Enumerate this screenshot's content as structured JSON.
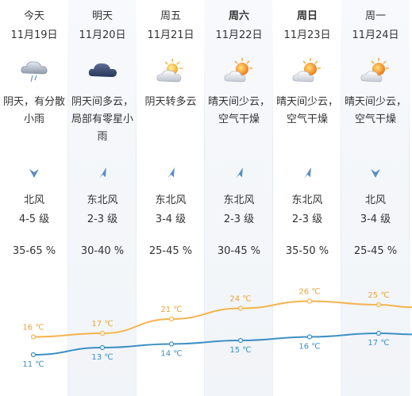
{
  "days": [
    {
      "day": "今天",
      "date": "11月19日",
      "icon": "rain-cloud-icon",
      "desc": "阴天，有分散小雨",
      "wind_dir": "北风",
      "wind_level": "4-5 级",
      "wind_arrow": "down",
      "humidity": "35-65 %",
      "high": "16 ℃",
      "low": "11 ℃",
      "bold": false,
      "shaded": false
    },
    {
      "day": "明天",
      "date": "11月20日",
      "icon": "dark-cloud-icon",
      "desc": "阴天间多云，局部有零星小雨",
      "wind_dir": "东北风",
      "wind_level": "2-3 级",
      "wind_arrow": "down-left",
      "humidity": "30-40 %",
      "high": "17 ℃",
      "low": "13 ℃",
      "bold": false,
      "shaded": true
    },
    {
      "day": "周五",
      "date": "11月21日",
      "icon": "sun-cloud-icon",
      "desc": "阴天转多云",
      "wind_dir": "东北风",
      "wind_level": "3-4 级",
      "wind_arrow": "down-left",
      "humidity": "25-45 %",
      "high": "21 ℃",
      "low": "14 ℃",
      "bold": false,
      "shaded": false
    },
    {
      "day": "周六",
      "date": "11月22日",
      "icon": "sunny-cloud-icon",
      "desc": "晴天间少云，空气干燥",
      "wind_dir": "东北风",
      "wind_level": "2-3 级",
      "wind_arrow": "down-left",
      "humidity": "30-45 %",
      "high": "24 ℃",
      "low": "15 ℃",
      "bold": true,
      "shaded": true
    },
    {
      "day": "周日",
      "date": "11月23日",
      "icon": "sunny-cloud-icon",
      "desc": "晴天间少云，空气干燥",
      "wind_dir": "东北风",
      "wind_level": "2-3 级",
      "wind_arrow": "down-left",
      "humidity": "35-50 %",
      "high": "26 ℃",
      "low": "16 ℃",
      "bold": true,
      "shaded": false
    },
    {
      "day": "周一",
      "date": "11月24日",
      "icon": "sunny-cloud-icon",
      "desc": "晴天间少云，空气干燥",
      "wind_dir": "北风",
      "wind_level": "3-4 级",
      "wind_arrow": "down",
      "humidity": "25-45 %",
      "high": "25 ℃",
      "low": "17 ℃",
      "bold": false,
      "shaded": true
    }
  ],
  "colors": {
    "high_line": "#f5b34e",
    "low_line": "#3d8fc4",
    "high_text": "#e8a53a",
    "low_text": "#3d8fc4",
    "arrow": "#5a8fc2"
  },
  "chart_data": {
    "type": "line",
    "x": [
      "11月19日",
      "11月20日",
      "11月21日",
      "11月22日",
      "11月23日",
      "11月24日"
    ],
    "series": [
      {
        "values": [
          16,
          17,
          21,
          24,
          26,
          25
        ]
      },
      {
        "values": [
          11,
          13,
          14,
          15,
          16,
          17
        ]
      }
    ],
    "unit": "℃"
  }
}
